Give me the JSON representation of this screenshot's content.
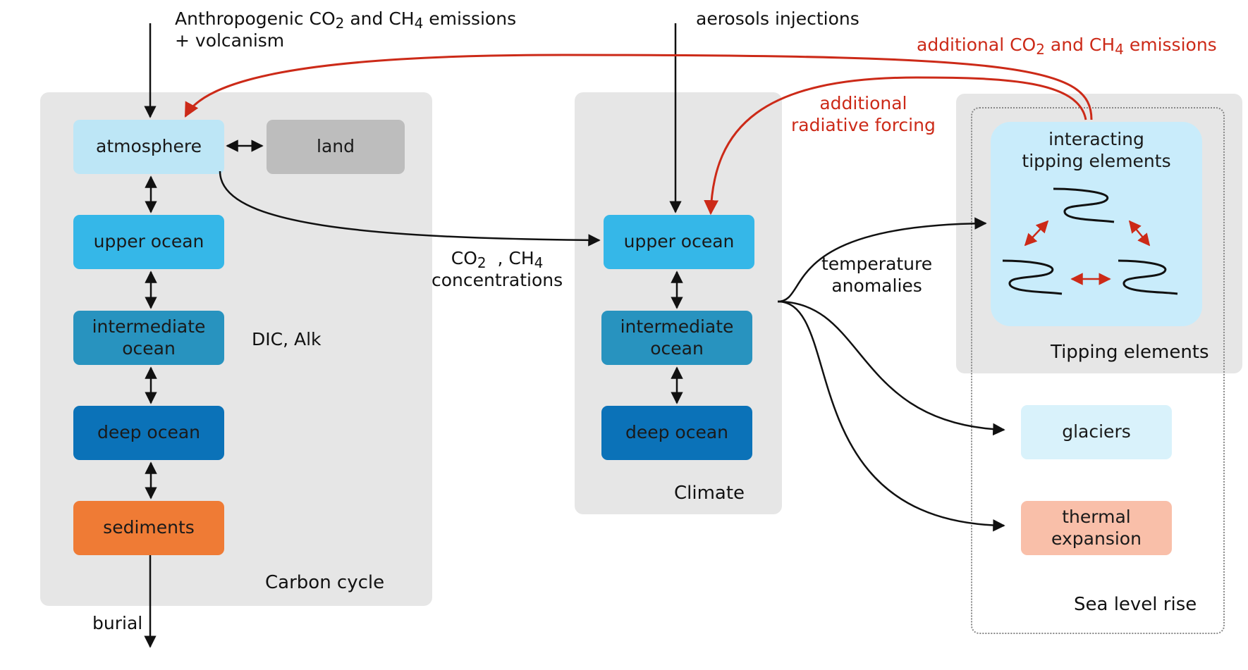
{
  "inputs": {
    "anthro_line1_pre": "Anthropogenic CO",
    "anthro_line1_co2_sub": "2",
    "anthro_line1_mid": " and CH",
    "anthro_line1_ch4_sub": "4",
    "anthro_line1_post": " emissions",
    "anthro_line2": "+ volcanism",
    "aerosols": "aerosols injections",
    "burial": "burial"
  },
  "carbon_cycle": {
    "title": "Carbon cycle",
    "atmosphere": "atmosphere",
    "land": "land",
    "upper_ocean": "upper ocean",
    "intermediate_ocean_1": "intermediate",
    "intermediate_ocean_2": "ocean",
    "deep_ocean": "deep ocean",
    "sediments": "sediments",
    "dic_alk": "DIC, Alk"
  },
  "concentrations": {
    "co2_pre": "CO",
    "co2_sub": "2",
    "ch4_pre": "  , CH",
    "ch4_sub": "4",
    "line2": "concentrations"
  },
  "climate": {
    "title": "Climate",
    "upper_ocean": "upper ocean",
    "intermediate_ocean_1": "intermediate",
    "intermediate_ocean_2": "ocean",
    "deep_ocean": "deep ocean"
  },
  "temperature": {
    "line1": "temperature",
    "line2": "anomalies"
  },
  "feedbacks": {
    "radiative_1": "additional",
    "radiative_2": "radiative forcing",
    "emissions_pre": "additional CO",
    "emissions_co2_sub": "2",
    "emissions_mid": " and CH",
    "emissions_ch4_sub": "4",
    "emissions_post": " emissions"
  },
  "tipping": {
    "title": "Tipping elements",
    "interacting_1": "interacting",
    "interacting_2": "tipping elements"
  },
  "sea_level": {
    "title": "Sea level rise",
    "glaciers": "glaciers",
    "thermal_1": "thermal",
    "thermal_2": "expansion"
  },
  "colors": {
    "panel": "#e6e6e6",
    "atmosphere": "#bde6f6",
    "land": "#bdbdbd",
    "upper_ocean": "#35b7e8",
    "intermediate_ocean": "#2893bf",
    "deep_ocean": "#0b72b8",
    "sediments": "#ef7b35",
    "tipping_box": "#c9ecfb",
    "glaciers": "#d9f2fb",
    "thermal_expansion": "#f9bfa9",
    "feedback_red": "#cc2a18"
  }
}
